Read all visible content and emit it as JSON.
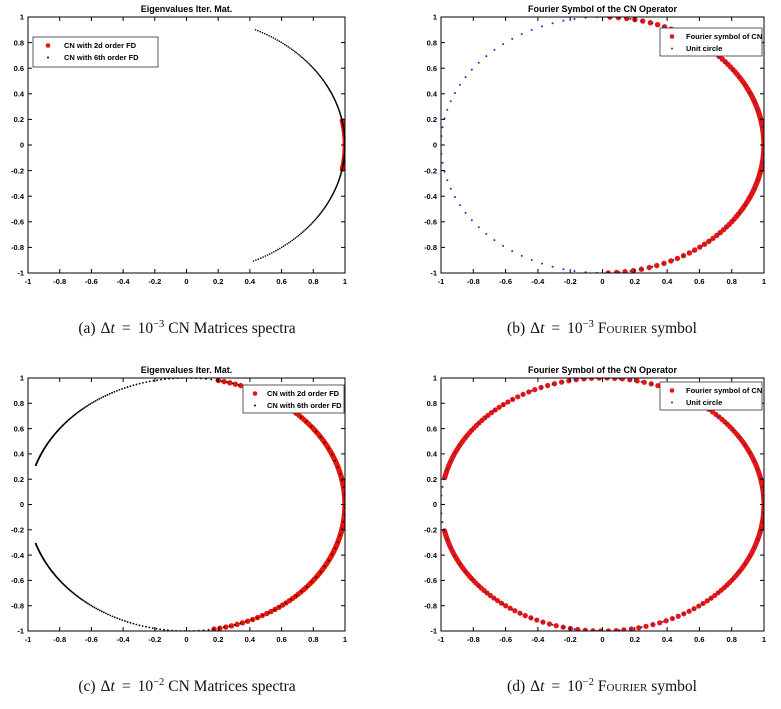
{
  "page": {
    "background": "#ffffff",
    "description": "2x2 grid of MATLAB-style scatter plots of unit-circle spectra with serif sub-captions"
  },
  "colors": {
    "red": "#e8150b",
    "black": "#000000",
    "blue": "#2626d8",
    "axis": "#000000"
  },
  "chart_data": [
    {
      "id": "a",
      "type": "scatter",
      "title": "Eigenvalues Iter. Mat.",
      "axis": {
        "xlim": [
          -1,
          1
        ],
        "ylim": [
          -1,
          1
        ],
        "grid": false,
        "box": true,
        "ticks": [
          -1,
          -0.8,
          -0.6,
          -0.4,
          -0.2,
          0,
          0.2,
          0.4,
          0.6,
          0.8,
          1
        ],
        "tick_labels": [
          "-1",
          "-0.8",
          "-0.6",
          "-0.4",
          "-0.2",
          "0",
          "0.2",
          "0.4",
          "0.6",
          "0.8",
          "1"
        ]
      },
      "legend": {
        "position": "top-left"
      },
      "series": [
        {
          "name": "CN with 2d order FD",
          "color": "#e8150b",
          "marker": "filled-dot",
          "marker_r_px": 2.4,
          "geometry": {
            "shape": "unit-circle-arc",
            "radius": 1,
            "center": [
              0,
              0
            ],
            "from_deg": -11,
            "to_deg": 11,
            "step_deg": 0.5,
            "density": "uniform",
            "k": 0
          },
          "extent_note": "thick red arc at x≈1, y from -0.19 to 0.19"
        },
        {
          "name": "CN with 6th order FD",
          "color": "#000000",
          "marker": "point",
          "marker_r_px": 0.8,
          "geometry": {
            "shape": "unit-circle-arc",
            "radius": 1,
            "center": [
              0,
              0
            ],
            "from_deg": -65,
            "to_deg": 65,
            "step_deg": 0.35,
            "density": "sparse-extremes",
            "k": 2.2
          },
          "extent_note": "dotted black arc from (0.42,0.91) through (1,0) to (0.42,-0.91)"
        }
      ],
      "caption": {
        "tag": "(a)",
        "delta": "Δ",
        "variable": "t",
        "relation": "=",
        "mantissa": "10",
        "exponent": "−3",
        "tail": [
          {
            "text": "CN Matrices spectra",
            "smallcaps": false
          }
        ]
      }
    },
    {
      "id": "b",
      "type": "scatter",
      "title": "Fourier Symbol of the CN Operator",
      "axis": {
        "xlim": [
          -1,
          1
        ],
        "ylim": [
          -1,
          1
        ],
        "grid": false,
        "box": true,
        "ticks": [
          -1,
          -0.8,
          -0.6,
          -0.4,
          -0.2,
          0,
          0.2,
          0.4,
          0.6,
          0.8,
          1
        ],
        "tick_labels": [
          "-1",
          "-0.8",
          "-0.6",
          "-0.4",
          "-0.2",
          "0",
          "0.2",
          "0.4",
          "0.6",
          "0.8",
          "1"
        ]
      },
      "legend": {
        "position": "top-right"
      },
      "series": [
        {
          "name": "Fourier symbol of CN",
          "color": "#e8150b",
          "marker": "filled-dot",
          "marker_r_px": 2.7,
          "geometry": {
            "shape": "unit-circle-arc",
            "radius": 1,
            "center": [
              0,
              0
            ],
            "from_deg": -88,
            "to_deg": 88,
            "step_deg": 0.55,
            "density": "sparse-extremes",
            "k": 4.5
          },
          "extent_note": "thick red arc covering the right half of the unit circle from (0,1) through (1,0) to (0,-1)"
        },
        {
          "name": "Unit circle",
          "color": "#2626d8",
          "marker": "point",
          "marker_r_px": 1.0,
          "geometry": {
            "shape": "unit-circle-arc",
            "radius": 1,
            "center": [
              0,
              0
            ],
            "from_deg": 0,
            "to_deg": 356,
            "step_deg": 4,
            "density": "uniform",
            "k": 0
          },
          "extent_note": "sparse blue dots marking the full unit circle"
        }
      ],
      "caption": {
        "tag": "(b)",
        "delta": "Δ",
        "variable": "t",
        "relation": "=",
        "mantissa": "10",
        "exponent": "−3",
        "tail": [
          {
            "text": "Fourier",
            "smallcaps": true
          },
          {
            "text": " symbol",
            "smallcaps": false
          }
        ]
      }
    },
    {
      "id": "c",
      "type": "scatter",
      "title": "Eigenvalues Iter. Mat.",
      "axis": {
        "xlim": [
          -1,
          1
        ],
        "ylim": [
          -1,
          1
        ],
        "grid": false,
        "box": true,
        "ticks": [
          -1,
          -0.8,
          -0.6,
          -0.4,
          -0.2,
          0,
          0.2,
          0.4,
          0.6,
          0.8,
          1
        ],
        "tick_labels": [
          "-1",
          "-0.8",
          "-0.6",
          "-0.4",
          "-0.2",
          "0",
          "0.2",
          "0.4",
          "0.6",
          "0.8",
          "1"
        ]
      },
      "legend": {
        "position": "top-right"
      },
      "series": [
        {
          "name": "CN with 2d order FD",
          "color": "#e8150b",
          "marker": "filled-dot",
          "marker_r_px": 2.7,
          "geometry": {
            "shape": "unit-circle-arc",
            "radius": 1,
            "center": [
              0,
              0
            ],
            "from_deg": -80,
            "to_deg": 80,
            "step_deg": 0.5,
            "density": "sparse-extremes",
            "k": 3.5
          },
          "extent_note": "thick red arc from (0.17,0.98) through (1,0) to (0.17,-0.98)"
        },
        {
          "name": "CN with 6th order FD",
          "color": "#000000",
          "marker": "point",
          "marker_r_px": 0.9,
          "geometry": {
            "shape": "unit-circle-arc",
            "radius": 1,
            "center": [
              0,
              0
            ],
            "from_deg": -162,
            "to_deg": 162,
            "step_deg": 3.0,
            "density": "cluster-edges",
            "k": 0,
            "eps": 0.05
          },
          "extent_note": "black dots on unit circle with gap near (-1,0); dense at (-0.95,±0.31), sparse elsewhere"
        }
      ],
      "caption": {
        "tag": "(c)",
        "delta": "Δ",
        "variable": "t",
        "relation": "=",
        "mantissa": "10",
        "exponent": "−2",
        "tail": [
          {
            "text": "CN Matrices spectra",
            "smallcaps": false
          }
        ]
      }
    },
    {
      "id": "d",
      "type": "scatter",
      "title": "Fourier Symbol of the CN Operator",
      "axis": {
        "xlim": [
          -1,
          1
        ],
        "ylim": [
          -1,
          1
        ],
        "grid": false,
        "box": true,
        "ticks": [
          -1,
          -0.8,
          -0.6,
          -0.4,
          -0.2,
          0,
          0.2,
          0.4,
          0.6,
          0.8,
          1
        ],
        "tick_labels": [
          "-1",
          "-0.8",
          "-0.6",
          "-0.4",
          "-0.2",
          "0",
          "0.2",
          "0.4",
          "0.6",
          "0.8",
          "1"
        ]
      },
      "legend": {
        "position": "top-right"
      },
      "series": [
        {
          "name": "Fourier symbol of CN",
          "color": "#e8150b",
          "marker": "filled-dot",
          "marker_r_px": 2.6,
          "geometry": {
            "shape": "unit-circle-arc",
            "radius": 1,
            "center": [
              0,
              0
            ],
            "from_deg": -168,
            "to_deg": 168,
            "step_deg": 0.55,
            "density": "sparse-extremes",
            "k": 4
          },
          "extent_note": "red dots covering the unit circle except a gap at x≈-1 between y=-0.2 and y=0.2"
        },
        {
          "name": "Unit circle",
          "color": "#2626d8",
          "marker": "point",
          "marker_r_px": 1.0,
          "geometry": {
            "shape": "unit-circle-arc",
            "radius": 1,
            "center": [
              0,
              0
            ],
            "from_deg": 0,
            "to_deg": 356,
            "step_deg": 4,
            "density": "uniform",
            "k": 0
          },
          "extent_note": "sparse blue dots marking the full unit circle"
        }
      ],
      "caption": {
        "tag": "(d)",
        "delta": "Δ",
        "variable": "t",
        "relation": "=",
        "mantissa": "10",
        "exponent": "−2",
        "tail": [
          {
            "text": "Fourier",
            "smallcaps": true
          },
          {
            "text": " symbol",
            "smallcaps": false
          }
        ]
      }
    }
  ]
}
